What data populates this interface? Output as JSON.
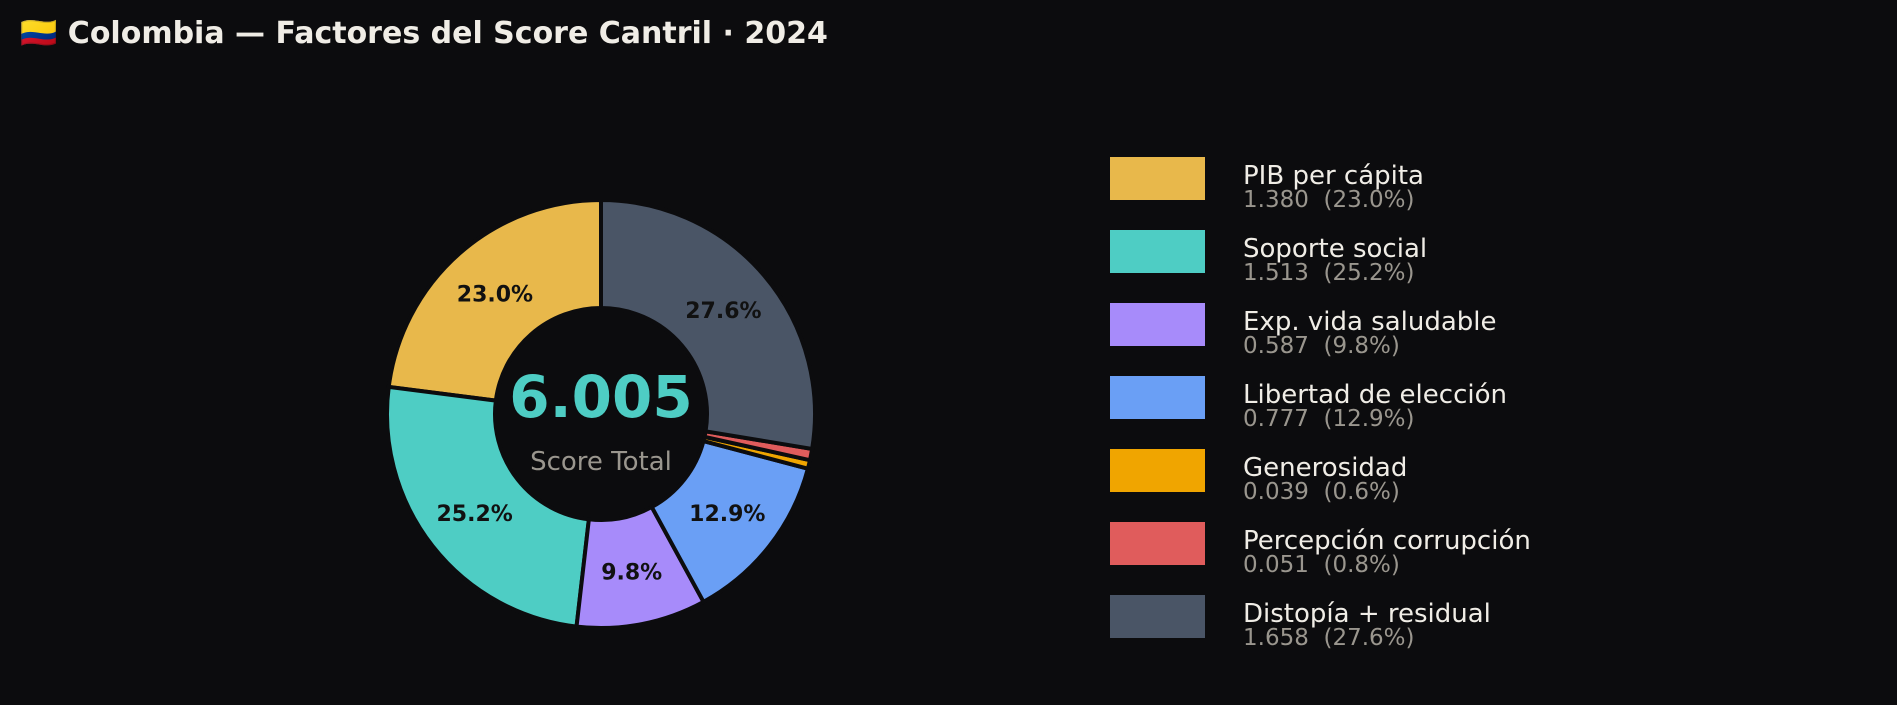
{
  "chart_data": {
    "type": "pie",
    "title": "🇨🇴 Colombia — Factores del Score Cantril · 2024",
    "center_value": "6.005",
    "center_label": "Score Total",
    "donut": true,
    "start_angle_deg": 90,
    "direction": "counterclockwise",
    "legend_position": "right",
    "slices": [
      {
        "name": "PIB per cápita",
        "value": 1.38,
        "value_label": "1.380",
        "percent": "23.0%",
        "color": "#e8b84b"
      },
      {
        "name": "Soporte social",
        "value": 1.513,
        "value_label": "1.513",
        "percent": "25.2%",
        "color": "#4ecdc4"
      },
      {
        "name": "Exp. vida saludable",
        "value": 0.587,
        "value_label": "0.587",
        "percent": "9.8%",
        "color": "#a78bfa"
      },
      {
        "name": "Libertad de elección",
        "value": 0.777,
        "value_label": "0.777",
        "percent": "12.9%",
        "color": "#6a9ff5"
      },
      {
        "name": "Generosidad",
        "value": 0.039,
        "value_label": "0.039",
        "percent": "0.6%",
        "color": "#f0a500"
      },
      {
        "name": "Percepción corrupción",
        "value": 0.051,
        "value_label": "0.051",
        "percent": "0.8%",
        "color": "#e05c5c"
      },
      {
        "name": "Distopía + residual",
        "value": 1.658,
        "value_label": "1.658",
        "percent": "27.6%",
        "color": "#4a5566"
      }
    ],
    "colors": {
      "background": "#0c0c0e",
      "center_value": "#4ecdc4",
      "center_label": "#9a968e"
    }
  }
}
